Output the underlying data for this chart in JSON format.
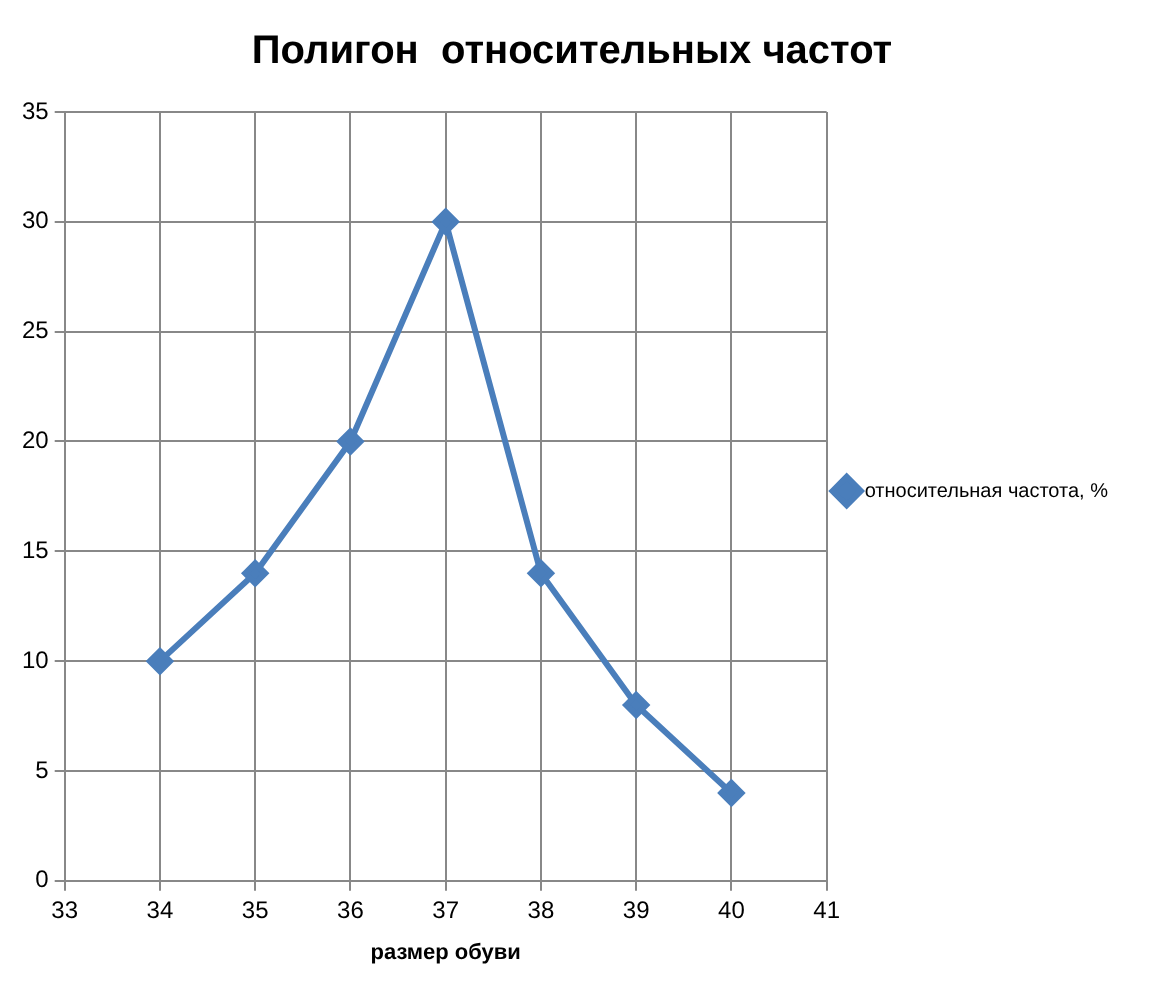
{
  "chart_data": {
    "type": "line",
    "title": "Полигон  относительных частот",
    "xlabel": "размер обуви",
    "x": [
      34,
      35,
      36,
      37,
      38,
      39,
      40
    ],
    "series": [
      {
        "name": "относительная частота, %",
        "color": "#4a7ebb",
        "values": [
          10,
          14,
          20,
          30,
          14,
          8,
          4
        ]
      }
    ],
    "xlim": [
      33,
      41
    ],
    "xticks": [
      33,
      34,
      35,
      36,
      37,
      38,
      39,
      40,
      41
    ],
    "ylim": [
      0,
      35
    ],
    "yticks": [
      0,
      5,
      10,
      15,
      20,
      25,
      30,
      35
    ],
    "grid": true,
    "legend": "right",
    "marker": "diamond",
    "line_style": "solid"
  }
}
